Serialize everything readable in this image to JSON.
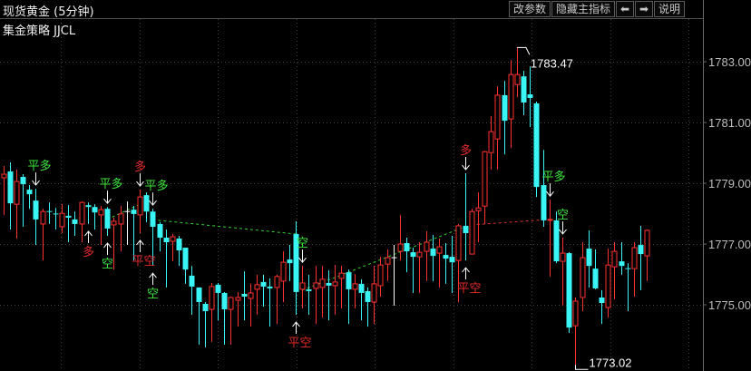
{
  "header": {
    "title": "现货黄金 (5分钟)",
    "indicator": "集金策略 JJCL",
    "buttons": {
      "params": "改参数",
      "hide_main": "隐藏主指标",
      "left": "⬅",
      "right": "➡",
      "help": "说明"
    }
  },
  "colors": {
    "up": "#ff3030",
    "down": "#39f5f5",
    "flat": "#ffffff",
    "signal_green": "#3ee63e",
    "signal_red": "#e52a2a",
    "axis_text": "#bdbdbd"
  },
  "chart_data": {
    "type": "candlestick",
    "title": "",
    "ylim": [
      1772.82,
      1783.84
    ],
    "y_ticks": [
      "1783.00",
      "1781.00",
      "1779.00",
      "1777.00",
      "1775.00"
    ],
    "grid": true,
    "max_label": "1783.47",
    "min_label": "1773.02",
    "max_value": 1783.47,
    "min_value": 1773.02,
    "ohlc": [
      [
        1779.18,
        1779.57,
        1777.96,
        1779.3
      ],
      [
        1779.39,
        1779.69,
        1777.48,
        1778.34
      ],
      [
        1778.31,
        1779.45,
        1777.18,
        1779.06
      ],
      [
        1779.21,
        1779.3,
        1777.57,
        1778.97
      ],
      [
        1778.79,
        1778.94,
        1778.16,
        1778.64
      ],
      [
        1778.43,
        1778.82,
        1776.97,
        1777.81
      ],
      [
        1777.66,
        1778.16,
        1776.46,
        1778.07
      ],
      [
        1778.07,
        1778.37,
        1777.66,
        1778.04
      ],
      [
        1777.99,
        1778.19,
        1777.48,
        1777.96
      ],
      [
        1777.57,
        1778.31,
        1777.36,
        1778.01
      ],
      [
        1777.93,
        1778.28,
        1777.06,
        1777.87
      ],
      [
        1777.81,
        1778.07,
        1777.27,
        1777.66
      ],
      [
        1777.66,
        1778.4,
        1777.06,
        1778.37
      ],
      [
        1778.28,
        1778.37,
        1777.66,
        1778.22
      ],
      [
        1778.22,
        1778.31,
        1777.48,
        1778.04
      ],
      [
        1777.96,
        1778.25,
        1776.97,
        1778.13
      ],
      [
        1778.16,
        1778.22,
        1777.27,
        1777.51
      ],
      [
        1777.63,
        1777.87,
        1776.16,
        1777.75
      ],
      [
        1777.66,
        1778.25,
        1776.76,
        1777.99
      ],
      [
        1778.07,
        1778.4,
        1776.97,
        1778.07
      ],
      [
        1778.13,
        1778.25,
        1776.46,
        1777.99
      ],
      [
        1777.96,
        1778.79,
        1777.36,
        1778.55
      ],
      [
        1778.61,
        1778.7,
        1777.72,
        1778.07
      ],
      [
        1778.07,
        1778.16,
        1776.28,
        1777.57
      ],
      [
        1777.66,
        1777.72,
        1776.76,
        1777.21
      ],
      [
        1777.21,
        1777.48,
        1775.57,
        1777.06
      ],
      [
        1777.09,
        1777.33,
        1776.43,
        1777.24
      ],
      [
        1777.18,
        1777.27,
        1776.28,
        1776.79
      ],
      [
        1776.88,
        1776.88,
        1775.69,
        1776.16
      ],
      [
        1775.96,
        1776.28,
        1774.67,
        1775.6
      ],
      [
        1775.57,
        1775.57,
        1773.69,
        1775.09
      ],
      [
        1775.03,
        1775.09,
        1773.6,
        1774.79
      ],
      [
        1774.85,
        1775.72,
        1773.78,
        1775.6
      ],
      [
        1775.66,
        1775.72,
        1774.49,
        1775.39
      ],
      [
        1775.39,
        1775.42,
        1773.69,
        1774.85
      ],
      [
        1774.85,
        1775.27,
        1773.69,
        1775.24
      ],
      [
        1775.15,
        1775.42,
        1774.28,
        1775.24
      ],
      [
        1775.36,
        1776.1,
        1774.49,
        1775.27
      ],
      [
        1775.21,
        1775.69,
        1774.28,
        1775.39
      ],
      [
        1775.51,
        1775.99,
        1774.67,
        1775.66
      ],
      [
        1775.75,
        1775.99,
        1774.94,
        1775.6
      ],
      [
        1775.6,
        1775.87,
        1774.28,
        1775.54
      ],
      [
        1775.57,
        1775.99,
        1774.37,
        1775.93
      ],
      [
        1775.78,
        1776.76,
        1775.09,
        1776.4
      ],
      [
        1776.49,
        1776.97,
        1775.78,
        1776.37
      ],
      [
        1777.33,
        1777.75,
        1774.67,
        1775.42
      ],
      [
        1775.51,
        1776.28,
        1774.88,
        1775.72
      ],
      [
        1775.51,
        1775.99,
        1774.67,
        1775.45
      ],
      [
        1775.54,
        1776.28,
        1774.37,
        1775.72
      ],
      [
        1775.57,
        1776.28,
        1774.58,
        1775.84
      ],
      [
        1775.72,
        1776.13,
        1774.49,
        1775.63
      ],
      [
        1775.63,
        1776.31,
        1774.67,
        1775.75
      ],
      [
        1775.87,
        1776.28,
        1774.88,
        1776.04
      ],
      [
        1776.07,
        1776.16,
        1774.37,
        1775.51
      ],
      [
        1775.51,
        1776.01,
        1774.88,
        1775.69
      ],
      [
        1775.69,
        1775.84,
        1774.49,
        1775.39
      ],
      [
        1775.45,
        1775.57,
        1774.28,
        1775.09
      ],
      [
        1775.09,
        1776.28,
        1774.37,
        1775.69
      ],
      [
        1775.63,
        1776.58,
        1775.27,
        1776.31
      ],
      [
        1776.34,
        1776.82,
        1775.78,
        1776.55
      ],
      [
        1776.55,
        1776.97,
        1774.97,
        1776.55
      ],
      [
        1776.76,
        1777.96,
        1776.46,
        1777.0
      ],
      [
        1777.03,
        1777.21,
        1776.07,
        1776.76
      ],
      [
        1776.73,
        1776.88,
        1775.39,
        1776.58
      ],
      [
        1776.58,
        1777.06,
        1775.39,
        1776.73
      ],
      [
        1776.76,
        1777.42,
        1775.78,
        1777.06
      ],
      [
        1776.85,
        1777.3,
        1775.78,
        1776.61
      ],
      [
        1776.7,
        1777.18,
        1775.57,
        1776.91
      ],
      [
        1776.64,
        1777.03,
        1775.69,
        1776.52
      ],
      [
        1776.58,
        1777.27,
        1775.39,
        1776.4
      ],
      [
        1776.46,
        1777.66,
        1775.09,
        1777.6
      ],
      [
        1777.6,
        1779.33,
        1776.46,
        1777.36
      ],
      [
        1776.67,
        1778.16,
        1776.67,
        1778.07
      ],
      [
        1778.1,
        1778.7,
        1777.06,
        1778.19
      ],
      [
        1778.25,
        1780.07,
        1777.66,
        1780.04
      ],
      [
        1780.01,
        1781.21,
        1779.45,
        1780.7
      ],
      [
        1780.46,
        1782.19,
        1779.45,
        1781.9
      ],
      [
        1781.9,
        1782.37,
        1779.95,
        1781.06
      ],
      [
        1781.12,
        1783.06,
        1780.16,
        1782.58
      ],
      [
        1782.25,
        1783.47,
        1781.84,
        1782.58
      ],
      [
        1782.52,
        1782.7,
        1781.24,
        1781.66
      ],
      [
        1781.93,
        1782.85,
        1780.85,
        1781.81
      ],
      [
        1781.63,
        1781.69,
        1778.55,
        1778.88
      ],
      [
        1778.94,
        1780.1,
        1777.57,
        1777.78
      ],
      [
        1777.78,
        1778.46,
        1775.93,
        1777.81
      ],
      [
        1777.78,
        1778.07,
        1776.37,
        1776.43
      ],
      [
        1776.43,
        1777.21,
        1774.97,
        1776.7
      ],
      [
        1776.7,
        1776.73,
        1774.07,
        1774.25
      ],
      [
        1774.31,
        1775.24,
        1773.02,
        1775.12
      ],
      [
        1775.24,
        1777.06,
        1774.79,
        1776.55
      ],
      [
        1776.85,
        1777.45,
        1775.57,
        1776.28
      ],
      [
        1776.19,
        1776.82,
        1775.51,
        1775.54
      ],
      [
        1775.24,
        1775.48,
        1774.37,
        1775.06
      ],
      [
        1774.91,
        1776.85,
        1774.58,
        1776.31
      ],
      [
        1776.25,
        1777.06,
        1775.18,
        1776.76
      ],
      [
        1776.43,
        1777.06,
        1775.99,
        1776.28
      ],
      [
        1776.19,
        1776.37,
        1774.79,
        1776.16
      ],
      [
        1776.19,
        1777.06,
        1775.27,
        1776.88
      ],
      [
        1776.97,
        1777.6,
        1775.48,
        1776.67
      ],
      [
        1776.61,
        1777.48,
        1775.78,
        1777.45
      ]
    ],
    "signals": [
      {
        "label": "平多",
        "color": "green",
        "candle": 5,
        "position": "above"
      },
      {
        "label": "多",
        "color": "red",
        "candle": 13,
        "position": "below"
      },
      {
        "label": "平多",
        "color": "green",
        "candle": 16,
        "position": "above"
      },
      {
        "label": "空",
        "color": "green",
        "candle": 16,
        "position": "below"
      },
      {
        "label": "多",
        "color": "red",
        "candle": 21,
        "position": "above"
      },
      {
        "label": "平空",
        "color": "red",
        "candle": 21,
        "position": "below"
      },
      {
        "label": "平多",
        "color": "green",
        "candle": 23,
        "position": "above"
      },
      {
        "label": "空",
        "color": "green",
        "candle": 23,
        "position": "below"
      },
      {
        "label": "平空",
        "color": "red",
        "candle": 45,
        "position": "below"
      },
      {
        "label": "空",
        "color": "green",
        "candle": 46,
        "position": "above"
      },
      {
        "label": "多",
        "color": "red",
        "candle": 71,
        "position": "above"
      },
      {
        "label": "平空",
        "color": "red",
        "candle": 71,
        "position": "below"
      },
      {
        "label": "平多",
        "color": "green",
        "candle": 84,
        "position": "above"
      },
      {
        "label": "空",
        "color": "green",
        "candle": 86,
        "position": "above"
      }
    ],
    "trade_lines": [
      {
        "from": [
          16,
          1777.81
        ],
        "to": [
          21,
          1778.31
        ],
        "color": "green"
      },
      {
        "from": [
          23,
          1777.8
        ],
        "to": [
          45,
          1777.33
        ],
        "color": "green"
      },
      {
        "from": [
          46,
          1775.48
        ],
        "to": [
          71,
          1777.57
        ],
        "color": "green"
      },
      {
        "from": [
          72,
          1777.63
        ],
        "to": [
          84,
          1777.81
        ],
        "color": "red"
      }
    ]
  }
}
